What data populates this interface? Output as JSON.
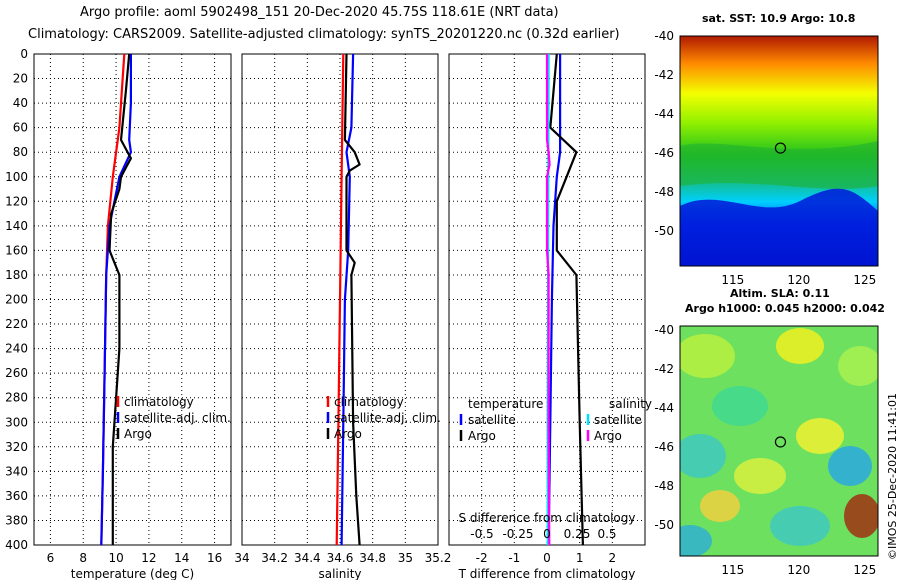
{
  "header": {
    "line1": "Argo profile: aoml 5902498_151 20-Dec-2020 45.75S 118.61E (NRT data)",
    "line2": "Climatology: CARS2009. Satellite-adjusted climatology: synTS_20201220.nc (0.32d earlier)"
  },
  "colors": {
    "climatology": "#ff0000",
    "satellite": "#0000ff",
    "argo": "#000000",
    "sat_temp_diff": "#00e0ff",
    "sal_diff": "#ff00ff"
  },
  "chart_data": [
    {
      "type": "line",
      "name": "temperature-profile",
      "xlabel": "temperature (deg C)",
      "ylabel": "",
      "xlim": [
        5,
        17
      ],
      "ylim": [
        0,
        400
      ],
      "xticks": [
        6,
        8,
        10,
        12,
        14,
        16
      ],
      "yticks": [
        0,
        20,
        40,
        60,
        80,
        100,
        120,
        140,
        160,
        180,
        200,
        220,
        240,
        260,
        280,
        300,
        320,
        340,
        360,
        380,
        400
      ],
      "grid": true,
      "legend": [
        "climatology",
        "satellite-adj. clim.",
        "Argo"
      ],
      "series": [
        {
          "name": "climatology",
          "color": "#ff0000",
          "depth": [
            0,
            60,
            100,
            140,
            180,
            260,
            340,
            400
          ],
          "values": [
            10.5,
            10.2,
            9.8,
            9.5,
            9.4,
            9.3,
            9.2,
            9.1
          ]
        },
        {
          "name": "satellite-adj. clim.",
          "color": "#0000ff",
          "depth": [
            0,
            40,
            70,
            80,
            100,
            140,
            180,
            260,
            340,
            400
          ],
          "values": [
            10.9,
            10.9,
            10.8,
            10.9,
            10.2,
            9.6,
            9.4,
            9.3,
            9.2,
            9.1
          ]
        },
        {
          "name": "Argo",
          "color": "#000000",
          "depth": [
            0,
            30,
            70,
            85,
            100,
            110,
            130,
            160,
            180,
            240,
            320,
            400
          ],
          "values": [
            10.8,
            10.6,
            10.3,
            10.9,
            10.3,
            10.2,
            9.7,
            9.6,
            10.2,
            10.2,
            9.8,
            9.8
          ]
        }
      ]
    },
    {
      "type": "line",
      "name": "salinity-profile",
      "xlabel": "salinity",
      "xlim": [
        34,
        35.2
      ],
      "ylim": [
        0,
        400
      ],
      "xticks": [
        34,
        34.2,
        34.4,
        34.6,
        34.8,
        35,
        35.2
      ],
      "grid": true,
      "legend": [
        "climatology",
        "satellite-adj. clim.",
        "Argo"
      ],
      "series": [
        {
          "name": "climatology",
          "color": "#ff0000",
          "depth": [
            0,
            100,
            200,
            300,
            400
          ],
          "values": [
            34.62,
            34.61,
            34.6,
            34.59,
            34.58
          ]
        },
        {
          "name": "satellite-adj. clim.",
          "color": "#0000ff",
          "depth": [
            0,
            60,
            80,
            100,
            160,
            200,
            300,
            400
          ],
          "values": [
            34.68,
            34.67,
            34.64,
            34.66,
            34.65,
            34.63,
            34.62,
            34.61
          ]
        },
        {
          "name": "Argo",
          "color": "#000000",
          "depth": [
            0,
            70,
            80,
            90,
            95,
            100,
            160,
            170,
            180,
            300,
            360,
            400
          ],
          "values": [
            34.64,
            34.63,
            34.69,
            34.72,
            34.66,
            34.64,
            34.64,
            34.69,
            34.67,
            34.68,
            34.7,
            34.72
          ]
        }
      ]
    },
    {
      "type": "line",
      "name": "difference-profile",
      "xlabel": "T difference from climatology",
      "top_xlabel": "S difference from climatology",
      "xlim": [
        -3,
        3
      ],
      "ylim": [
        0,
        400
      ],
      "xticks": [
        -2,
        -1,
        0,
        1,
        2
      ],
      "top_xticks": [
        "-0.5",
        "-0.25",
        "0",
        "0.25",
        "0.5"
      ],
      "grid": true,
      "legend_left_title": "temperature",
      "legend_right_title": "salinity",
      "legend_left": [
        "satellite",
        "Argo"
      ],
      "legend_right": [
        "satellite",
        "Argo"
      ],
      "series": [
        {
          "name": "T satellite",
          "color": "#0000ff",
          "depth": [
            0,
            80,
            100,
            140,
            200,
            300,
            400
          ],
          "values": [
            0.4,
            0.4,
            0.3,
            0.2,
            0.15,
            0.1,
            0.05
          ]
        },
        {
          "name": "T Argo",
          "color": "#000000",
          "depth": [
            0,
            60,
            80,
            100,
            120,
            160,
            180,
            300,
            400
          ],
          "values": [
            0.3,
            0.1,
            0.9,
            0.6,
            0.3,
            0.3,
            0.9,
            1.0,
            1.1
          ]
        },
        {
          "name": "S satellite",
          "color": "#00e0ff",
          "depth": [
            0,
            100,
            200,
            300,
            400
          ],
          "values": [
            0.05,
            0.04,
            0.03,
            0.02,
            0.02
          ]
        },
        {
          "name": "S Argo",
          "color": "#ff00ff",
          "depth": [
            0,
            70,
            80,
            90,
            100,
            160,
            180,
            300,
            360,
            400
          ],
          "values": [
            0.0,
            0.0,
            0.05,
            0.08,
            0.0,
            0.0,
            0.05,
            0.05,
            0.06,
            0.07
          ]
        }
      ]
    },
    {
      "type": "heatmap",
      "name": "sst-map",
      "title": "sat. SST: 10.9 Argo: 10.8",
      "xticks": [
        115,
        120,
        125
      ],
      "yticks": [
        -40,
        -42,
        -44,
        -46,
        -48,
        -50
      ],
      "xlim": [
        111,
        126
      ],
      "ylim": [
        -51.8,
        -40
      ],
      "marker": {
        "lon": 118.61,
        "lat": -45.75
      }
    },
    {
      "type": "heatmap",
      "name": "sla-map",
      "title1": "Altim. SLA: 0.11",
      "title2": "Argo h1000: 0.045 h2000: 0.042",
      "xticks": [
        115,
        120,
        125
      ],
      "yticks": [
        -40,
        -42,
        -44,
        -46,
        -48,
        -50
      ],
      "xlim": [
        111,
        126
      ],
      "ylim": [
        -51.6,
        -39.8
      ],
      "marker": {
        "lon": 118.61,
        "lat": -45.75
      }
    }
  ],
  "footer": {
    "stamp": "©IMOS 25-Dec-2020 11:41:01"
  }
}
